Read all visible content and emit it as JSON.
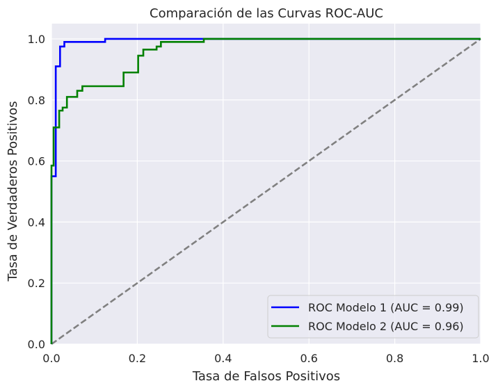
{
  "chart_data": {
    "type": "line",
    "title": "Comparación de las Curvas ROC-AUC",
    "xlabel": "Tasa de Falsos Positivos",
    "ylabel": "Tasa de Verdaderos Positivos",
    "xlim": [
      0.0,
      1.0
    ],
    "ylim": [
      0.0,
      1.05
    ],
    "xticks": [
      0.0,
      0.2,
      0.4,
      0.6,
      0.8,
      1.0
    ],
    "xtick_labels": [
      "0.0",
      "0.2",
      "0.4",
      "0.6",
      "0.8",
      "1.0"
    ],
    "yticks": [
      0.0,
      0.2,
      0.4,
      0.6,
      0.8,
      1.0
    ],
    "ytick_labels": [
      "0.0",
      "0.2",
      "0.4",
      "0.6",
      "0.8",
      "1.0"
    ],
    "grid": true,
    "legend_position": "lower-right",
    "background_color": "#eaeaf2",
    "series": [
      {
        "name": "ROC Modelo 1 (AUC = 0.99)",
        "color": "#0000ff",
        "style": "solid",
        "x": [
          0.0,
          0.0,
          0.0,
          0.0,
          0.01,
          0.01,
          0.02,
          0.02,
          0.03,
          0.03,
          0.125,
          0.125,
          0.355,
          1.0
        ],
        "y": [
          0.0,
          0.01,
          0.01,
          0.55,
          0.55,
          0.91,
          0.91,
          0.975,
          0.975,
          0.99,
          0.99,
          1.0,
          1.0,
          1.0
        ]
      },
      {
        "name": "ROC Modelo 2 (AUC = 0.96)",
        "color": "#008000",
        "style": "solid",
        "x": [
          0.0,
          0.0,
          0.0,
          0.0,
          0.0,
          0.0,
          0.005,
          0.005,
          0.01,
          0.01,
          0.018,
          0.018,
          0.026,
          0.026,
          0.036,
          0.036,
          0.046,
          0.046,
          0.06,
          0.06,
          0.072,
          0.072,
          0.168,
          0.168,
          0.178,
          0.178,
          0.202,
          0.202,
          0.214,
          0.214,
          0.245,
          0.245,
          0.255,
          0.255,
          0.355,
          0.355,
          1.0
        ],
        "y": [
          0.0,
          0.01,
          0.01,
          0.4,
          0.4,
          0.585,
          0.585,
          0.71,
          0.71,
          0.71,
          0.71,
          0.765,
          0.765,
          0.775,
          0.775,
          0.81,
          0.81,
          0.81,
          0.81,
          0.83,
          0.83,
          0.845,
          0.845,
          0.89,
          0.89,
          0.89,
          0.89,
          0.945,
          0.945,
          0.965,
          0.965,
          0.975,
          0.975,
          0.99,
          0.99,
          1.0,
          1.0
        ]
      },
      {
        "name": "",
        "color": "#808080",
        "style": "dashed",
        "x": [
          0.0,
          1.0
        ],
        "y": [
          0.0,
          1.0
        ]
      }
    ]
  }
}
